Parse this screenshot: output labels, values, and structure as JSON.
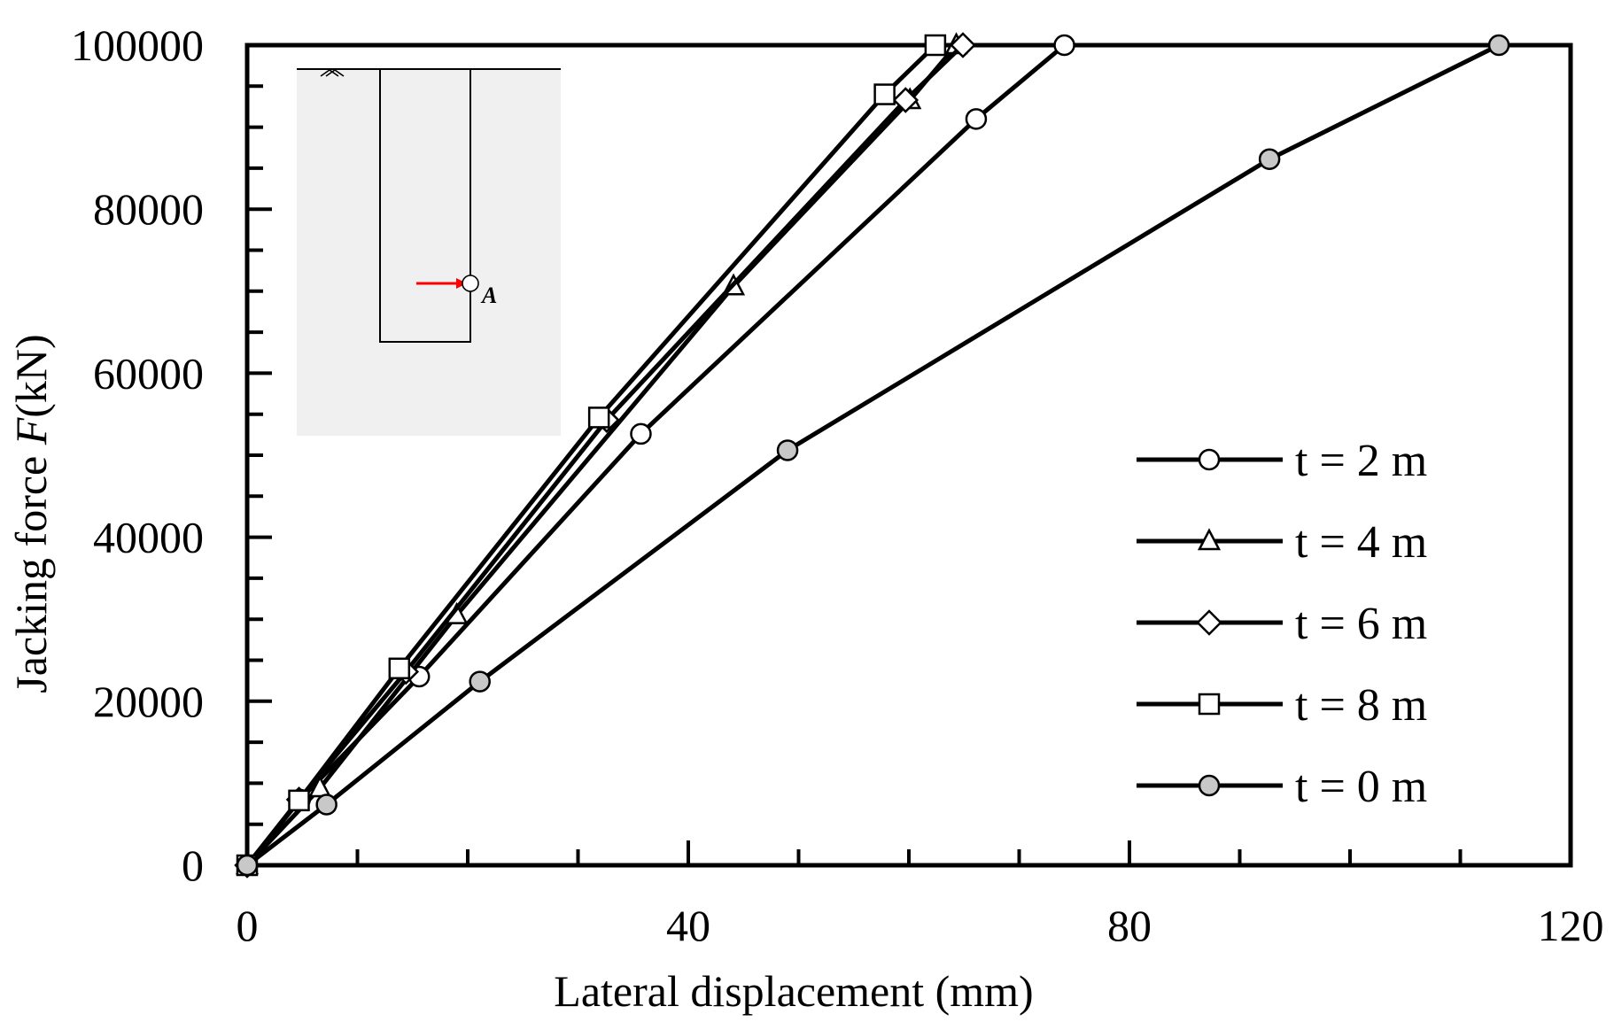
{
  "chart_data": {
    "type": "line",
    "xlabel": "Lateral displacement (mm)",
    "ylabel": "Jacking force ",
    "ylabel_var": "F",
    "ylabel_unit": "(kN)",
    "xlim": [
      0,
      120
    ],
    "ylim": [
      0,
      100000
    ],
    "x_ticks": [
      0,
      40,
      80,
      120
    ],
    "y_ticks": [
      0,
      20000,
      40000,
      60000,
      80000,
      100000
    ],
    "x_tick_labels": [
      "0",
      "40",
      "80",
      "120"
    ],
    "y_tick_labels": [
      "0",
      "20000",
      "40000",
      "60000",
      "80000",
      "100000"
    ],
    "grid": false,
    "legend_position": "lower-right",
    "series": [
      {
        "name": "t = 2 m",
        "marker": "circle",
        "fill": "#ffffff",
        "x": [
          0,
          4.8,
          15.6,
          35.7,
          66.1,
          74.1
        ],
        "y": [
          0,
          8000,
          23000,
          52600,
          91000,
          100000
        ]
      },
      {
        "name": "t = 4 m",
        "marker": "triangle",
        "fill": "#ffffff",
        "x": [
          0,
          6.6,
          19.0,
          44.1,
          60.1,
          64.3
        ],
        "y": [
          0,
          9400,
          30500,
          70600,
          93300,
          100000
        ]
      },
      {
        "name": "t = 6 m",
        "marker": "diamond",
        "fill": "#ffffff",
        "x": [
          0,
          4.7,
          14.4,
          32.6,
          59.7,
          64.9
        ],
        "y": [
          0,
          8000,
          23600,
          54300,
          93300,
          100000
        ]
      },
      {
        "name": "t = 8 m",
        "marker": "square",
        "fill": "#ffffff",
        "x": [
          0,
          4.7,
          13.8,
          31.9,
          57.8,
          62.4
        ],
        "y": [
          0,
          7900,
          24000,
          54600,
          94000,
          100000
        ]
      },
      {
        "name": "t = 0 m",
        "marker": "circle",
        "fill": "#c8c8c8",
        "x": [
          0,
          7.2,
          21.1,
          49.0,
          92.7,
          113.5
        ],
        "y": [
          0,
          7400,
          22400,
          50600,
          86100,
          100000
        ]
      }
    ],
    "inset": {
      "point_label": "A",
      "arrow_color": "#ff0000"
    }
  }
}
